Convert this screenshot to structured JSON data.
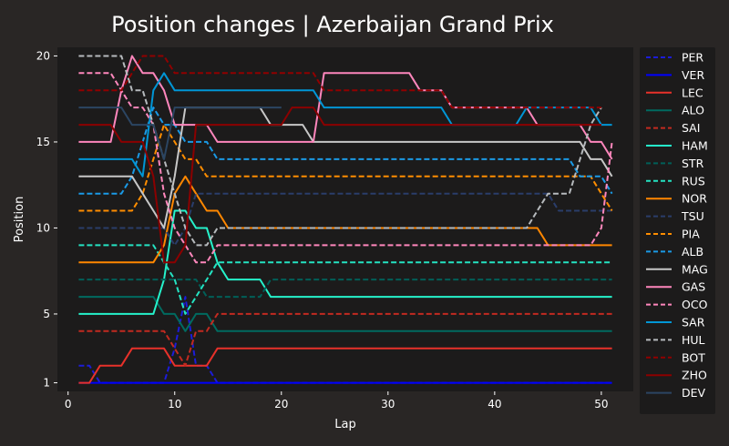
{
  "chart_data": {
    "type": "line",
    "title": "Position changes | Azerbaijan Grand Prix",
    "xlabel": "Lap",
    "ylabel": "Position",
    "xlim": [
      -1,
      53
    ],
    "ylim": [
      20.5,
      0.5
    ],
    "x_ticks": [
      0,
      10,
      20,
      30,
      40,
      50
    ],
    "y_ticks": [
      1,
      5,
      10,
      15,
      20
    ],
    "legend_position": "right",
    "grid": false,
    "series": [
      {
        "name": "PER",
        "color": "#1c1cd8",
        "dashed": true,
        "points": [
          [
            1,
            2
          ],
          [
            2,
            2
          ],
          [
            3,
            1
          ],
          [
            9,
            1
          ],
          [
            10,
            3
          ],
          [
            11,
            6
          ],
          [
            12,
            2
          ],
          [
            13,
            2
          ],
          [
            14,
            1
          ],
          [
            51,
            1
          ]
        ]
      },
      {
        "name": "VER",
        "color": "#0000ff",
        "dashed": false,
        "points": [
          [
            1,
            1
          ],
          [
            51,
            1
          ]
        ]
      },
      {
        "name": "LEC",
        "color": "#e8312a",
        "dashed": false,
        "points": [
          [
            1,
            1
          ],
          [
            2,
            1
          ],
          [
            3,
            2
          ],
          [
            5,
            2
          ],
          [
            6,
            3
          ],
          [
            9,
            3
          ],
          [
            10,
            2
          ],
          [
            13,
            2
          ],
          [
            14,
            3
          ],
          [
            51,
            3
          ]
        ]
      },
      {
        "name": "ALO",
        "color": "#006b60",
        "dashed": false,
        "points": [
          [
            1,
            6
          ],
          [
            8,
            6
          ],
          [
            9,
            5
          ],
          [
            10,
            5
          ],
          [
            11,
            4
          ],
          [
            12,
            5
          ],
          [
            13,
            5
          ],
          [
            14,
            4
          ],
          [
            51,
            4
          ]
        ]
      },
      {
        "name": "SAI",
        "color": "#c22a20",
        "dashed": true,
        "points": [
          [
            1,
            4
          ],
          [
            9,
            4
          ],
          [
            10,
            3
          ],
          [
            11,
            2
          ],
          [
            12,
            4
          ],
          [
            13,
            4
          ],
          [
            14,
            5
          ],
          [
            51,
            5
          ]
        ]
      },
      {
        "name": "HAM",
        "color": "#25f2cb",
        "dashed": false,
        "points": [
          [
            1,
            5
          ],
          [
            8,
            5
          ],
          [
            9,
            7
          ],
          [
            10,
            11
          ],
          [
            11,
            11
          ],
          [
            12,
            10
          ],
          [
            13,
            10
          ],
          [
            14,
            8
          ],
          [
            15,
            7
          ],
          [
            18,
            7
          ],
          [
            19,
            6
          ],
          [
            51,
            6
          ]
        ]
      },
      {
        "name": "STR",
        "color": "#005f58",
        "dashed": true,
        "points": [
          [
            1,
            7
          ],
          [
            12,
            7
          ],
          [
            13,
            6
          ],
          [
            18,
            6
          ],
          [
            19,
            7
          ],
          [
            51,
            7
          ]
        ]
      },
      {
        "name": "RUS",
        "color": "#24e3c2",
        "dashed": true,
        "points": [
          [
            1,
            9
          ],
          [
            8,
            9
          ],
          [
            9,
            8
          ],
          [
            10,
            7
          ],
          [
            11,
            5
          ],
          [
            12,
            6
          ],
          [
            13,
            7
          ],
          [
            14,
            8
          ],
          [
            51,
            8
          ]
        ]
      },
      {
        "name": "NOR",
        "color": "#ff8700",
        "dashed": false,
        "points": [
          [
            1,
            8
          ],
          [
            8,
            8
          ],
          [
            9,
            9
          ],
          [
            10,
            12
          ],
          [
            11,
            13
          ],
          [
            12,
            12
          ],
          [
            13,
            11
          ],
          [
            14,
            11
          ],
          [
            15,
            10
          ],
          [
            43,
            10
          ],
          [
            44,
            10
          ],
          [
            45,
            9
          ],
          [
            49,
            9
          ],
          [
            50,
            9
          ],
          [
            51,
            9
          ]
        ]
      },
      {
        "name": "TSU",
        "color": "#2a3d6a",
        "dashed": true,
        "points": [
          [
            1,
            10
          ],
          [
            9,
            10
          ],
          [
            10,
            9
          ],
          [
            11,
            10
          ],
          [
            12,
            12
          ],
          [
            45,
            12
          ],
          [
            46,
            11
          ],
          [
            51,
            11
          ]
        ]
      },
      {
        "name": "PIA",
        "color": "#ff8d00",
        "dashed": true,
        "points": [
          [
            1,
            11
          ],
          [
            6,
            11
          ],
          [
            7,
            12
          ],
          [
            8,
            14
          ],
          [
            9,
            16
          ],
          [
            10,
            15
          ],
          [
            11,
            14
          ],
          [
            12,
            14
          ],
          [
            13,
            13
          ],
          [
            48,
            13
          ],
          [
            49,
            13
          ],
          [
            50,
            12
          ],
          [
            51,
            11
          ]
        ]
      },
      {
        "name": "ALB",
        "color": "#1a9ae6",
        "dashed": true,
        "points": [
          [
            1,
            12
          ],
          [
            5,
            12
          ],
          [
            6,
            13
          ],
          [
            7,
            15
          ],
          [
            8,
            17
          ],
          [
            9,
            16
          ],
          [
            10,
            16
          ],
          [
            11,
            15
          ],
          [
            12,
            15
          ],
          [
            13,
            15
          ],
          [
            14,
            14
          ],
          [
            47,
            14
          ],
          [
            48,
            13
          ],
          [
            49,
            13
          ],
          [
            50,
            13
          ],
          [
            51,
            12
          ]
        ]
      },
      {
        "name": "MAG",
        "color": "#c7c7c7",
        "dashed": false,
        "points": [
          [
            1,
            13
          ],
          [
            5,
            13
          ],
          [
            6,
            13
          ],
          [
            7,
            12
          ],
          [
            8,
            11
          ],
          [
            9,
            10
          ],
          [
            10,
            13
          ],
          [
            11,
            17
          ],
          [
            18,
            17
          ],
          [
            19,
            16
          ],
          [
            22,
            16
          ],
          [
            23,
            15
          ],
          [
            48,
            15
          ],
          [
            49,
            14
          ],
          [
            50,
            14
          ],
          [
            51,
            13
          ]
        ]
      },
      {
        "name": "GAS",
        "color": "#fe86bc",
        "dashed": false,
        "points": [
          [
            1,
            15
          ],
          [
            4,
            15
          ],
          [
            5,
            18
          ],
          [
            6,
            20
          ],
          [
            7,
            19
          ],
          [
            8,
            19
          ],
          [
            9,
            18
          ],
          [
            10,
            16
          ],
          [
            11,
            16
          ],
          [
            13,
            16
          ],
          [
            14,
            15
          ],
          [
            23,
            15
          ],
          [
            24,
            19
          ],
          [
            32,
            19
          ],
          [
            33,
            18
          ],
          [
            35,
            18
          ],
          [
            36,
            17
          ],
          [
            43,
            17
          ],
          [
            44,
            16
          ],
          [
            48,
            16
          ],
          [
            49,
            15
          ],
          [
            50,
            15
          ],
          [
            51,
            14
          ]
        ]
      },
      {
        "name": "OCO",
        "color": "#ff87bc",
        "dashed": true,
        "points": [
          [
            1,
            19
          ],
          [
            4,
            19
          ],
          [
            5,
            18
          ],
          [
            6,
            17
          ],
          [
            7,
            17
          ],
          [
            8,
            16
          ],
          [
            9,
            12
          ],
          [
            10,
            10
          ],
          [
            11,
            9
          ],
          [
            12,
            8
          ],
          [
            13,
            8
          ],
          [
            14,
            9
          ],
          [
            48,
            9
          ],
          [
            49,
            9
          ],
          [
            50,
            10
          ],
          [
            51,
            15
          ]
        ]
      },
      {
        "name": "SAR",
        "color": "#0096d6",
        "dashed": false,
        "points": [
          [
            1,
            14
          ],
          [
            6,
            14
          ],
          [
            7,
            13
          ],
          [
            8,
            18
          ],
          [
            9,
            19
          ],
          [
            10,
            18
          ],
          [
            11,
            18
          ],
          [
            12,
            18
          ],
          [
            13,
            18
          ],
          [
            14,
            18
          ],
          [
            23,
            18
          ],
          [
            24,
            17
          ],
          [
            35,
            17
          ],
          [
            36,
            16
          ],
          [
            42,
            16
          ],
          [
            43,
            17
          ],
          [
            49,
            17
          ],
          [
            50,
            16
          ],
          [
            51,
            16
          ]
        ]
      },
      {
        "name": "HUL",
        "color": "#b6babd",
        "dashed": true,
        "points": [
          [
            1,
            20
          ],
          [
            5,
            20
          ],
          [
            6,
            18
          ],
          [
            7,
            18
          ],
          [
            8,
            16
          ],
          [
            9,
            14
          ],
          [
            10,
            12
          ],
          [
            11,
            10
          ],
          [
            12,
            9
          ],
          [
            13,
            9
          ],
          [
            14,
            10
          ],
          [
            43,
            10
          ],
          [
            44,
            11
          ],
          [
            45,
            12
          ],
          [
            47,
            12
          ],
          [
            48,
            14
          ],
          [
            49,
            16
          ],
          [
            50,
            17
          ]
        ]
      },
      {
        "name": "BOT",
        "color": "#900000",
        "dashed": true,
        "points": [
          [
            1,
            18
          ],
          [
            5,
            18
          ],
          [
            6,
            19
          ],
          [
            7,
            20
          ],
          [
            9,
            20
          ],
          [
            10,
            19
          ],
          [
            23,
            19
          ],
          [
            24,
            18
          ],
          [
            35,
            18
          ],
          [
            36,
            17
          ],
          [
            50,
            17
          ]
        ]
      },
      {
        "name": "ZHO",
        "color": "#8b0000",
        "dashed": false,
        "points": [
          [
            1,
            16
          ],
          [
            4,
            16
          ],
          [
            5,
            15
          ],
          [
            7,
            15
          ],
          [
            8,
            13
          ],
          [
            9,
            8
          ],
          [
            10,
            8
          ],
          [
            11,
            9
          ],
          [
            12,
            16
          ],
          [
            20,
            16
          ],
          [
            21,
            17
          ],
          [
            23,
            17
          ],
          [
            24,
            16
          ],
          [
            50,
            16
          ]
        ]
      },
      {
        "name": "DEV",
        "color": "#2b4562",
        "dashed": false,
        "points": [
          [
            1,
            17
          ],
          [
            5,
            17
          ],
          [
            6,
            16
          ],
          [
            8,
            16
          ],
          [
            9,
            14
          ],
          [
            10,
            17
          ],
          [
            20,
            17
          ]
        ]
      }
    ]
  }
}
